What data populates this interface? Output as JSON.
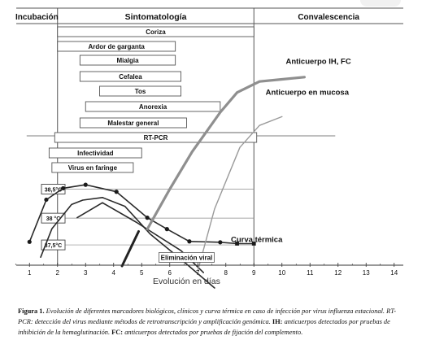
{
  "chart_data": {
    "type": "line",
    "phases": [
      {
        "label": "Incubación",
        "x_start": 0,
        "x_end": 1
      },
      {
        "label": "Sintomatología",
        "x_start": 2,
        "x_end": 9
      },
      {
        "label": "Convalescencia",
        "x_start": 9,
        "x_end": 14
      }
    ],
    "symptom_bars": [
      {
        "label": "Coriza",
        "start": 2.0,
        "end": 9.0
      },
      {
        "label": "Ardor de garganta",
        "start": 2.0,
        "end": 6.2
      },
      {
        "label": "Mialgia",
        "start": 2.8,
        "end": 6.2
      },
      {
        "label": "Cefalea",
        "start": 2.8,
        "end": 6.4
      },
      {
        "label": "Tos",
        "start": 3.5,
        "end": 6.4
      },
      {
        "label": "Anorexia",
        "start": 3.0,
        "end": 7.8
      },
      {
        "label": "Malestar general",
        "start": 2.8,
        "end": 6.6
      },
      {
        "label": "RT-PCR",
        "start": 1.9,
        "end": 9.1
      },
      {
        "label": "Infectividad",
        "start": 1.7,
        "end": 5.0
      },
      {
        "label": "Virus en faringe",
        "start": 1.8,
        "end": 4.7
      }
    ],
    "temp_labels": [
      "38,5°C",
      "38 °C",
      "37,5°C"
    ],
    "x_ticks": [
      "1",
      "2",
      "3",
      "4",
      "5",
      "6",
      "7",
      "8",
      "9",
      "10",
      "11",
      "12",
      "13",
      "14"
    ],
    "xlabel": "Evolución en días",
    "xlim": [
      0.5,
      14
    ],
    "series": [
      {
        "name": "Curva térmica",
        "style": "dark",
        "x": [
          1.0,
          1.6,
          2.2,
          3.0,
          4.1,
          5.2,
          5.9,
          6.7,
          7.8,
          8.4,
          9.0
        ],
        "y": [
          0.5,
          10.1,
          12.7,
          13.5,
          11.9,
          6.0,
          3.4,
          0.6,
          0.4,
          0.1,
          0.1
        ]
      },
      {
        "name": "Virus en faringe (curva)",
        "style": "dark",
        "x": [
          1.4,
          1.8,
          2.5,
          2.9,
          3.6,
          4.4,
          5.3,
          6.5,
          7.6
        ],
        "y": [
          -3.0,
          3.5,
          9.0,
          10.0,
          10.6,
          8.6,
          2.3,
          -4.0,
          -10.0
        ]
      },
      {
        "name": "Eliminación viral",
        "style": "dark",
        "x": [
          2.7,
          3.6,
          4.8,
          6.4,
          7.2
        ],
        "y": [
          6.0,
          9.4,
          5.0,
          -1.5,
          -6.5
        ]
      },
      {
        "name": "Anticuerpo IH, FC",
        "style": "grey-thick",
        "x": [
          5.2,
          6.0,
          6.8,
          7.8,
          8.4,
          9.2,
          10.0,
          10.8
        ],
        "y": [
          3.4,
          12.5,
          21.0,
          30.0,
          34.5,
          37.0,
          37.5,
          38.0
        ]
      },
      {
        "name": "Anticuerpo en mucosa",
        "style": "grey-thin",
        "x": [
          7.0,
          7.6,
          8.5,
          9.2,
          10.0
        ],
        "y": [
          -6.0,
          8.0,
          22.0,
          27.0,
          29.0
        ]
      },
      {
        "name": "",
        "style": "hatched",
        "x": [
          4.3,
          4.9
        ],
        "y": [
          -5.0,
          3.0
        ]
      }
    ],
    "temperature_points": [
      {
        "x": 1.0,
        "y": 0.5
      },
      {
        "x": 1.6,
        "y": 10.1
      },
      {
        "x": 2.2,
        "y": 12.7
      },
      {
        "x": 3.0,
        "y": 13.5
      },
      {
        "x": 4.1,
        "y": 11.9
      },
      {
        "x": 5.2,
        "y": 6.0
      },
      {
        "x": 5.9,
        "y": 3.4
      },
      {
        "x": 6.7,
        "y": 0.6
      },
      {
        "x": 7.8,
        "y": 0.4
      }
    ],
    "annotations": [
      {
        "text": "Anticuerpo IH, FC",
        "x": 11.3,
        "y": 41.0
      },
      {
        "text": "Anticuerpo en mucosa",
        "x": 10.9,
        "y": 34.0
      },
      {
        "text": "Curva térmica",
        "x": 9.1,
        "y": 0.5
      },
      {
        "text": "Eliminación viral",
        "x": 6.6,
        "y": -3.6
      }
    ],
    "colors": {
      "dark": "#2a2a2a",
      "grey": "#8f8f8f",
      "grid": "#8a8a8a",
      "box_border": "#555555"
    }
  },
  "caption": {
    "figure_label": "Figura 1.",
    "line1": "Evolución de diferentes marcadores biológicos, clínicos y curva térmica en caso de infección por virus influenza estacional. RT-PCR: detección del virus mediante métodos de retrotranscripción y amplificación genómica.",
    "ih_label": "IH:",
    "ih_text": "anticuerpos detectados por pruebas de inhibición de la hemaglutinación.",
    "fc_label": "FC:",
    "fc_text": "anticuerpos detectados por pruebas de fijación del complemento."
  }
}
